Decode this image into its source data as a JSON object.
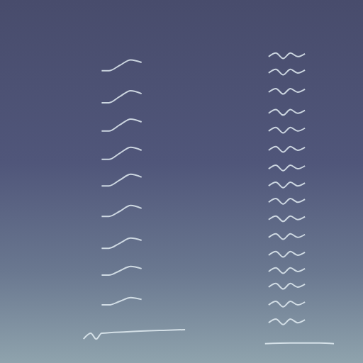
{
  "chart_data": {
    "type": "line",
    "tick_labels": false,
    "grid": false,
    "color": "#e2ecf2",
    "xlim": [
      0,
      100
    ],
    "ylim": [
      0,
      100
    ],
    "series": [
      {
        "x": [
          23,
          25,
          26.5,
          28,
          35,
          45,
          51
        ],
        "values": [
          6.6,
          8.2,
          6.6,
          8.2,
          8.6,
          9.0,
          9.2
        ]
      },
      {
        "x": [
          28,
          30,
          33,
          36,
          39
        ],
        "values": [
          16.0,
          16.0,
          17.0,
          18.0,
          17.5
        ]
      },
      {
        "x": [
          28,
          30,
          33,
          36,
          39
        ],
        "values": [
          24.2,
          24.2,
          25.4,
          26.6,
          26.0
        ]
      },
      {
        "x": [
          28,
          30,
          33,
          36,
          39
        ],
        "values": [
          31.6,
          31.6,
          33.0,
          34.4,
          33.8
        ]
      },
      {
        "x": [
          28,
          30,
          33,
          36,
          39
        ],
        "values": [
          40.4,
          40.4,
          41.8,
          43.4,
          42.6
        ]
      },
      {
        "x": [
          28,
          30,
          33,
          36,
          39
        ],
        "values": [
          48.8,
          48.8,
          50.4,
          52.0,
          51.2
        ]
      },
      {
        "x": [
          28,
          30,
          33,
          36,
          39
        ],
        "values": [
          56.1,
          56.1,
          57.8,
          59.4,
          58.6
        ]
      },
      {
        "x": [
          28,
          30,
          33,
          36,
          39
        ],
        "values": [
          63.9,
          63.9,
          65.6,
          67.2,
          66.4
        ]
      },
      {
        "x": [
          28,
          30,
          33,
          36,
          39
        ],
        "values": [
          71.7,
          71.7,
          73.4,
          75.0,
          74.2
        ]
      },
      {
        "x": [
          28,
          30,
          33,
          36,
          39
        ],
        "values": [
          80.5,
          80.5,
          82.0,
          83.5,
          82.8
        ]
      },
      {
        "x": [
          73,
          80,
          88,
          92
        ],
        "values": [
          5.3,
          5.5,
          5.5,
          5.3
        ]
      },
      {
        "x": [
          74,
          76,
          78,
          80,
          82,
          84
        ],
        "values": [
          11.1,
          12.1,
          10.6,
          12.1,
          11.1,
          11.9
        ]
      },
      {
        "x": [
          74,
          76,
          78,
          80,
          82,
          84
        ],
        "values": [
          16.0,
          17.0,
          15.5,
          17.0,
          16.0,
          16.8
        ]
      },
      {
        "x": [
          74,
          76,
          78,
          80,
          82,
          84
        ],
        "values": [
          20.9,
          21.9,
          20.4,
          21.9,
          20.9,
          21.7
        ]
      },
      {
        "x": [
          74,
          76,
          78,
          80,
          82,
          84
        ],
        "values": [
          25.2,
          26.2,
          24.7,
          26.2,
          25.2,
          26.0
        ]
      },
      {
        "x": [
          74,
          76,
          78,
          80,
          82,
          84
        ],
        "values": [
          29.7,
          30.7,
          29.2,
          30.7,
          29.7,
          30.5
        ]
      },
      {
        "x": [
          74,
          76,
          78,
          80,
          82,
          84
        ],
        "values": [
          34.6,
          35.6,
          34.1,
          35.6,
          34.6,
          35.4
        ]
      },
      {
        "x": [
          74,
          76,
          78,
          80,
          82,
          84
        ],
        "values": [
          39.5,
          40.5,
          39.0,
          40.5,
          39.5,
          40.3
        ]
      },
      {
        "x": [
          74,
          76,
          78,
          80,
          82,
          84
        ],
        "values": [
          44.3,
          45.3,
          43.8,
          45.3,
          44.3,
          45.1
        ]
      },
      {
        "x": [
          74,
          76,
          78,
          80,
          82,
          84
        ],
        "values": [
          48.8,
          49.8,
          48.3,
          49.8,
          48.8,
          49.6
        ]
      },
      {
        "x": [
          74,
          76,
          78,
          80,
          82,
          84
        ],
        "values": [
          53.5,
          54.5,
          53.0,
          54.5,
          53.5,
          54.3
        ]
      },
      {
        "x": [
          74,
          76,
          78,
          80,
          82,
          84
        ],
        "values": [
          58.6,
          59.6,
          58.1,
          59.6,
          58.6,
          59.4
        ]
      },
      {
        "x": [
          74,
          76,
          78,
          80,
          82,
          84
        ],
        "values": [
          63.9,
          64.9,
          63.4,
          64.9,
          63.9,
          64.7
        ]
      },
      {
        "x": [
          74,
          76,
          78,
          80,
          82,
          84
        ],
        "values": [
          68.8,
          69.8,
          68.3,
          69.8,
          68.8,
          69.6
        ]
      },
      {
        "x": [
          74,
          76,
          78,
          80,
          82,
          84
        ],
        "values": [
          74.6,
          75.6,
          74.1,
          75.6,
          74.6,
          75.4
        ]
      },
      {
        "x": [
          74,
          76,
          78,
          80,
          82,
          84
        ],
        "values": [
          79.9,
          80.9,
          79.4,
          80.9,
          79.9,
          80.7
        ]
      },
      {
        "x": [
          74,
          76,
          78,
          80,
          82,
          84
        ],
        "values": [
          84.4,
          85.4,
          83.9,
          85.4,
          84.4,
          85.2
        ]
      }
    ]
  }
}
